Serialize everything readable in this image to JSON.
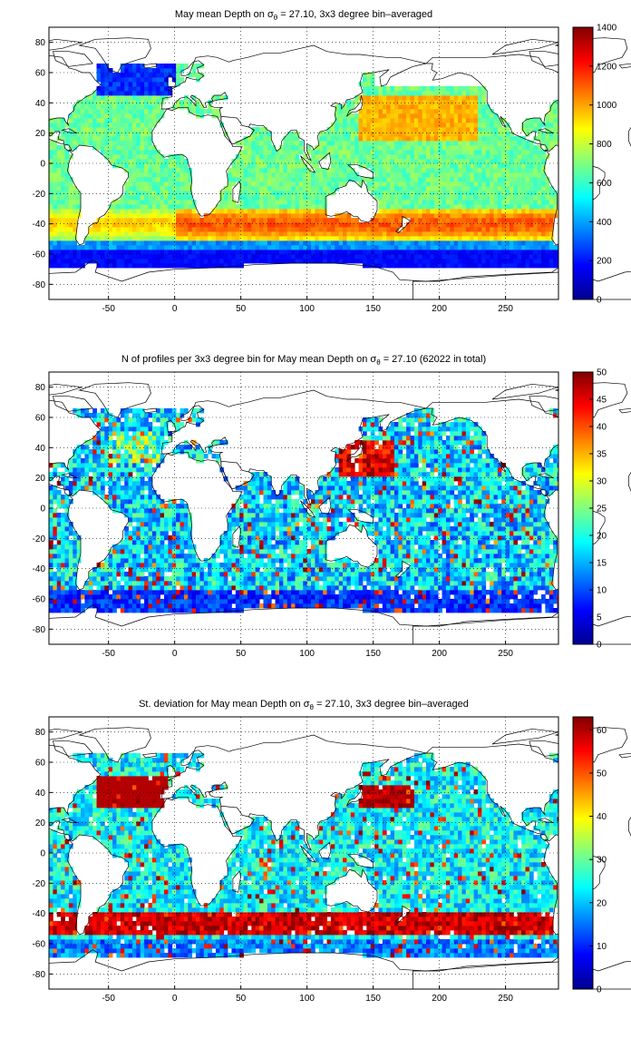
{
  "chart_data": [
    {
      "type": "heatmap",
      "title_pre": "May mean Depth on σ",
      "title_sub": "θ",
      "title_post": " = 27.10, 3x3 degree bin–averaged",
      "x_ticks": [
        "-50",
        "0",
        "50",
        "100",
        "150",
        "200",
        "250"
      ],
      "y_ticks": [
        "80",
        "60",
        "40",
        "20",
        "0",
        "-20",
        "-40",
        "-60",
        "-80"
      ],
      "xlim": [
        -95,
        290
      ],
      "ylim": [
        -90,
        90
      ],
      "colorbar": {
        "min": 0,
        "max": 1400,
        "ticks": [
          "1400",
          "1200",
          "1000",
          "800",
          "600",
          "400",
          "200",
          "0"
        ]
      },
      "colormap": "jet",
      "grid": true,
      "land_color": "#ffffff",
      "field_pattern": "depth"
    },
    {
      "type": "heatmap",
      "title_pre": "N of profiles per 3x3 degree bin for May mean Depth on σ",
      "title_sub": "θ",
      "title_post": " = 27.10 (62022 in total)",
      "x_ticks": [
        "-50",
        "0",
        "50",
        "100",
        "150",
        "200",
        "250"
      ],
      "y_ticks": [
        "80",
        "60",
        "40",
        "20",
        "0",
        "-20",
        "-40",
        "-60",
        "-80"
      ],
      "xlim": [
        -95,
        290
      ],
      "ylim": [
        -90,
        90
      ],
      "colorbar": {
        "min": 0,
        "max": 50,
        "ticks": [
          "50",
          "45",
          "40",
          "35",
          "30",
          "25",
          "20",
          "15",
          "10",
          "5",
          "0"
        ]
      },
      "colormap": "jet",
      "grid": true,
      "land_color": "#ffffff",
      "field_pattern": "count"
    },
    {
      "type": "heatmap",
      "title_pre": "St. deviation for May mean Depth on σ",
      "title_sub": "θ",
      "title_post": " = 27.10, 3x3 degree bin–averaged",
      "x_ticks": [
        "-50",
        "0",
        "50",
        "100",
        "150",
        "200",
        "250"
      ],
      "y_ticks": [
        "80",
        "60",
        "40",
        "20",
        "0",
        "-20",
        "-40",
        "-60",
        "-80"
      ],
      "xlim": [
        -95,
        290
      ],
      "ylim": [
        -90,
        90
      ],
      "colorbar": {
        "min": 0,
        "max": 63,
        "ticks": [
          "60",
          "50",
          "40",
          "30",
          "20",
          "10",
          "0"
        ]
      },
      "colormap": "jet",
      "grid": true,
      "land_color": "#ffffff",
      "field_pattern": "stdev"
    }
  ]
}
